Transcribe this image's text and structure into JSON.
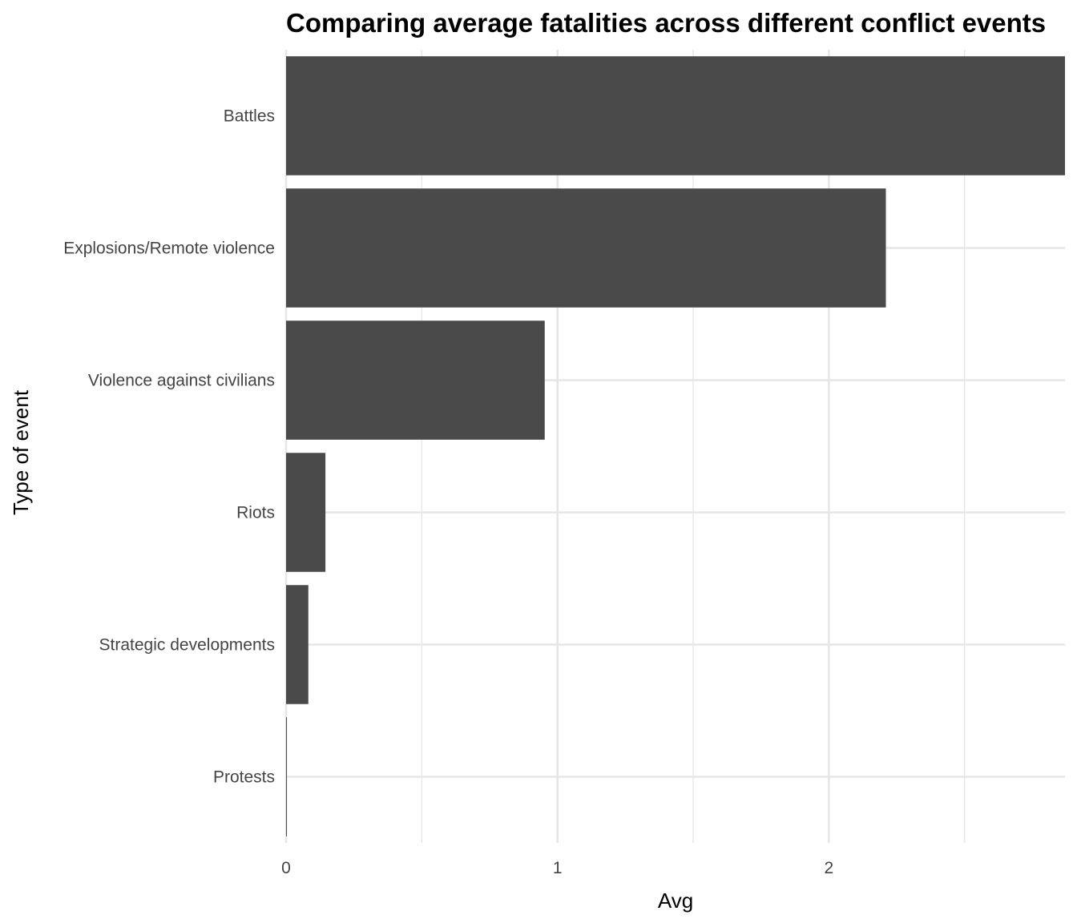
{
  "chart_data": {
    "type": "bar",
    "orientation": "horizontal",
    "title": "Comparing average fatalities across different conflict events",
    "xlabel": "Avg",
    "ylabel": "Type of event",
    "categories": [
      "Battles",
      "Explosions/Remote violence",
      "Violence against civilians",
      "Riots",
      "Strategic developments",
      "Protests"
    ],
    "values": [
      2.87,
      2.21,
      0.953,
      0.145,
      0.082,
      0.003
    ],
    "xlim": [
      0,
      2.87
    ],
    "x_ticks": [
      "0",
      "1",
      "2"
    ],
    "x_tick_values": [
      0,
      1,
      2
    ],
    "grid": true,
    "bar_color": "#4a4a4a",
    "grid_color": "#e6e6e6"
  }
}
